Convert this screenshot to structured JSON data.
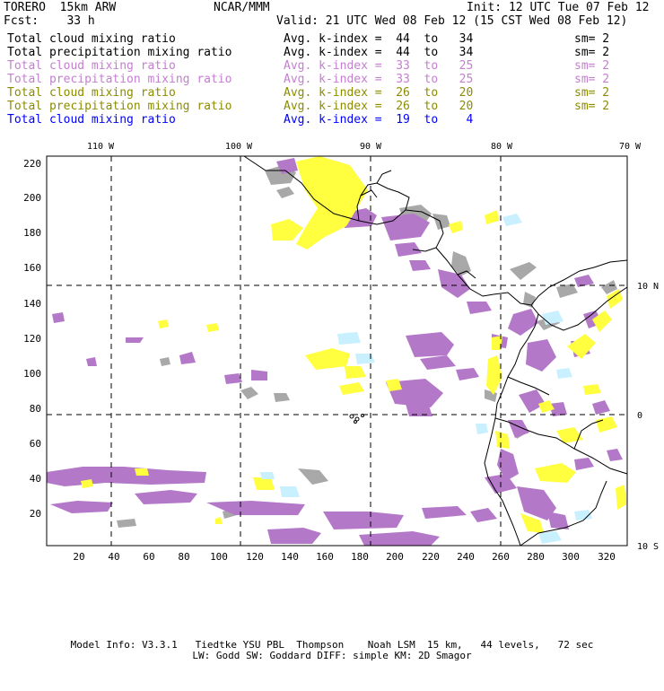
{
  "header": {
    "model": "TORERO  15km ARW",
    "org": "NCAR/MMM",
    "init": "Init: 12 UTC Tue 07 Feb 12",
    "forecast": "Fcst:    33 h",
    "valid": "Valid: 21 UTC Wed 08 Feb 12 (15 CST Wed 08 Feb 12)"
  },
  "legend": [
    {
      "label": "Total cloud mixing ratio",
      "index": "Avg. k-index =  44  to   34",
      "sm": "sm= 2",
      "color": "#000000"
    },
    {
      "label": "Total precipitation mixing ratio",
      "index": "Avg. k-index =  44  to   34",
      "sm": "sm= 2",
      "color": "#000000"
    },
    {
      "label": "Total cloud mixing ratio",
      "index": "Avg. k-index =  33  to   25",
      "sm": "sm= 2",
      "color": "#c47fd0"
    },
    {
      "label": "Total precipitation mixing ratio",
      "index": "Avg. k-index =  33  to   25",
      "sm": "sm= 2",
      "color": "#c47fd0"
    },
    {
      "label": "Total cloud mixing ratio",
      "index": "Avg. k-index =  26  to   20",
      "sm": "sm= 2",
      "color": "#8c8c00"
    },
    {
      "label": "Total precipitation mixing ratio",
      "index": "Avg. k-index =  26  to   20",
      "sm": "sm= 2",
      "color": "#8c8c00"
    },
    {
      "label": "Total cloud mixing ratio",
      "index": "Avg. k-index =  19  to    4",
      "sm": "",
      "color": "#0000ff"
    }
  ],
  "map": {
    "lon_labels": [
      "110 W",
      "100 W",
      "90 W",
      "80 W",
      "70 W"
    ],
    "lat_labels": [
      "10 N",
      "0",
      "10 S"
    ],
    "y_ticks": [
      "220",
      "200",
      "180",
      "160",
      "140",
      "120",
      "100",
      "80",
      "60",
      "40",
      "20"
    ],
    "x_ticks": [
      "20",
      "40",
      "60",
      "80",
      "100",
      "120",
      "140",
      "160",
      "180",
      "200",
      "220",
      "240",
      "260",
      "280",
      "300",
      "320"
    ],
    "colors": {
      "gray": "#a8a8a8",
      "purple": "#b478c8",
      "yellow": "#ffff40",
      "cyan": "#c8f0ff",
      "coast": "#000000"
    }
  },
  "footer": {
    "line1": "Model Info: V3.3.1   Tiedtke YSU PBL  Thompson    Noah LSM  15 km,   44 levels,   72 sec",
    "line2": "LW: Godd SW: Goddard DIFF: simple KM: 2D Smagor"
  }
}
